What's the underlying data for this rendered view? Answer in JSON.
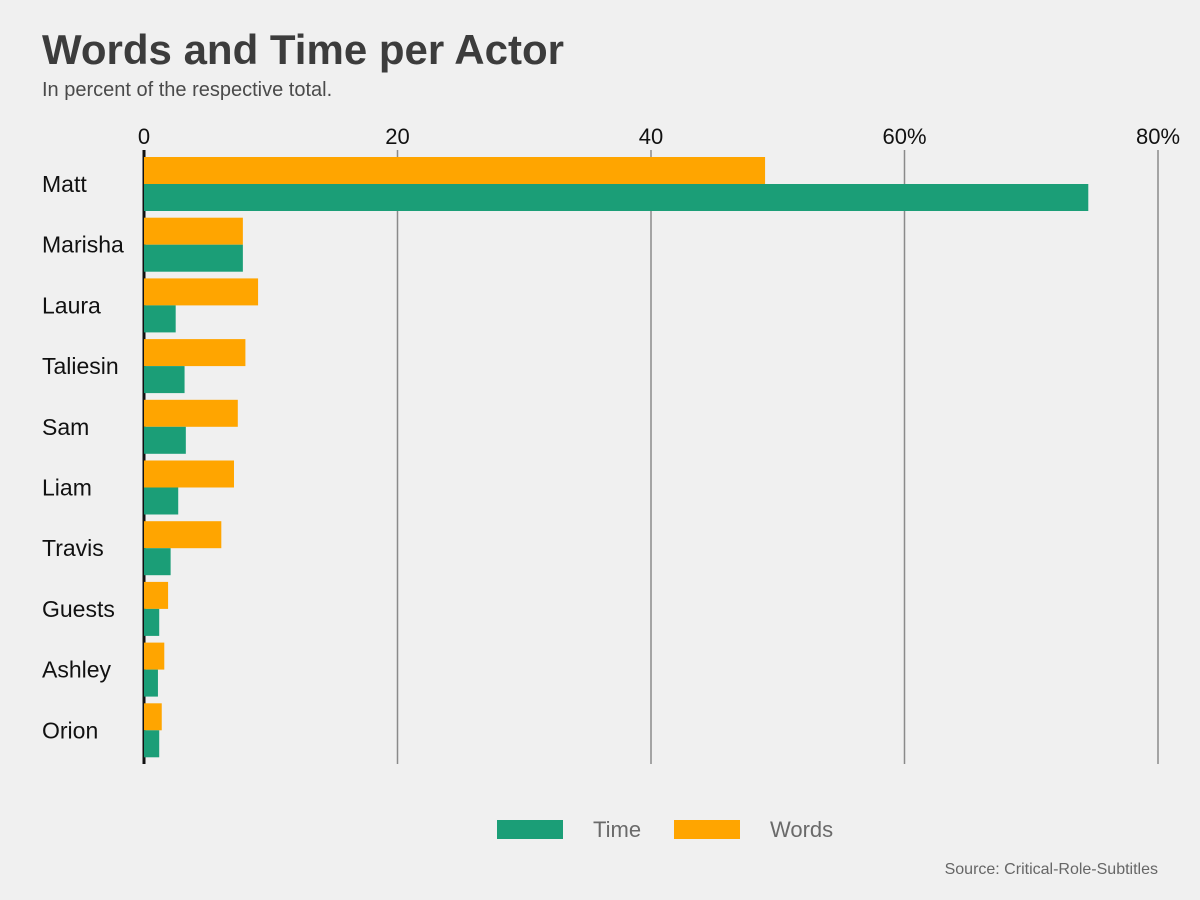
{
  "chart_data": {
    "type": "bar",
    "orientation": "horizontal",
    "title": "Words and Time per Actor",
    "subtitle": "In percent of the respective total.",
    "source": "Source: Critical-Role-Subtitles",
    "categories": [
      "Matt",
      "Marisha",
      "Laura",
      "Taliesin",
      "Sam",
      "Liam",
      "Travis",
      "Guests",
      "Ashley",
      "Orion"
    ],
    "series": [
      {
        "name": "Words",
        "color": "#ffa500",
        "values": [
          49.0,
          7.8,
          9.0,
          8.0,
          7.4,
          7.1,
          6.1,
          1.9,
          1.6,
          1.4
        ]
      },
      {
        "name": "Time",
        "color": "#1b9e77",
        "values": [
          74.5,
          7.8,
          2.5,
          3.2,
          3.3,
          2.7,
          2.1,
          1.2,
          1.1,
          1.2
        ]
      }
    ],
    "xlim": [
      0,
      80
    ],
    "xticks": [
      0,
      20,
      40,
      60,
      80
    ],
    "xtick_labels": [
      "0",
      "20",
      "40",
      "60%",
      "80%"
    ],
    "grid": "vertical",
    "legend": {
      "placement": "bottom",
      "order": [
        "Time",
        "Words"
      ]
    }
  }
}
